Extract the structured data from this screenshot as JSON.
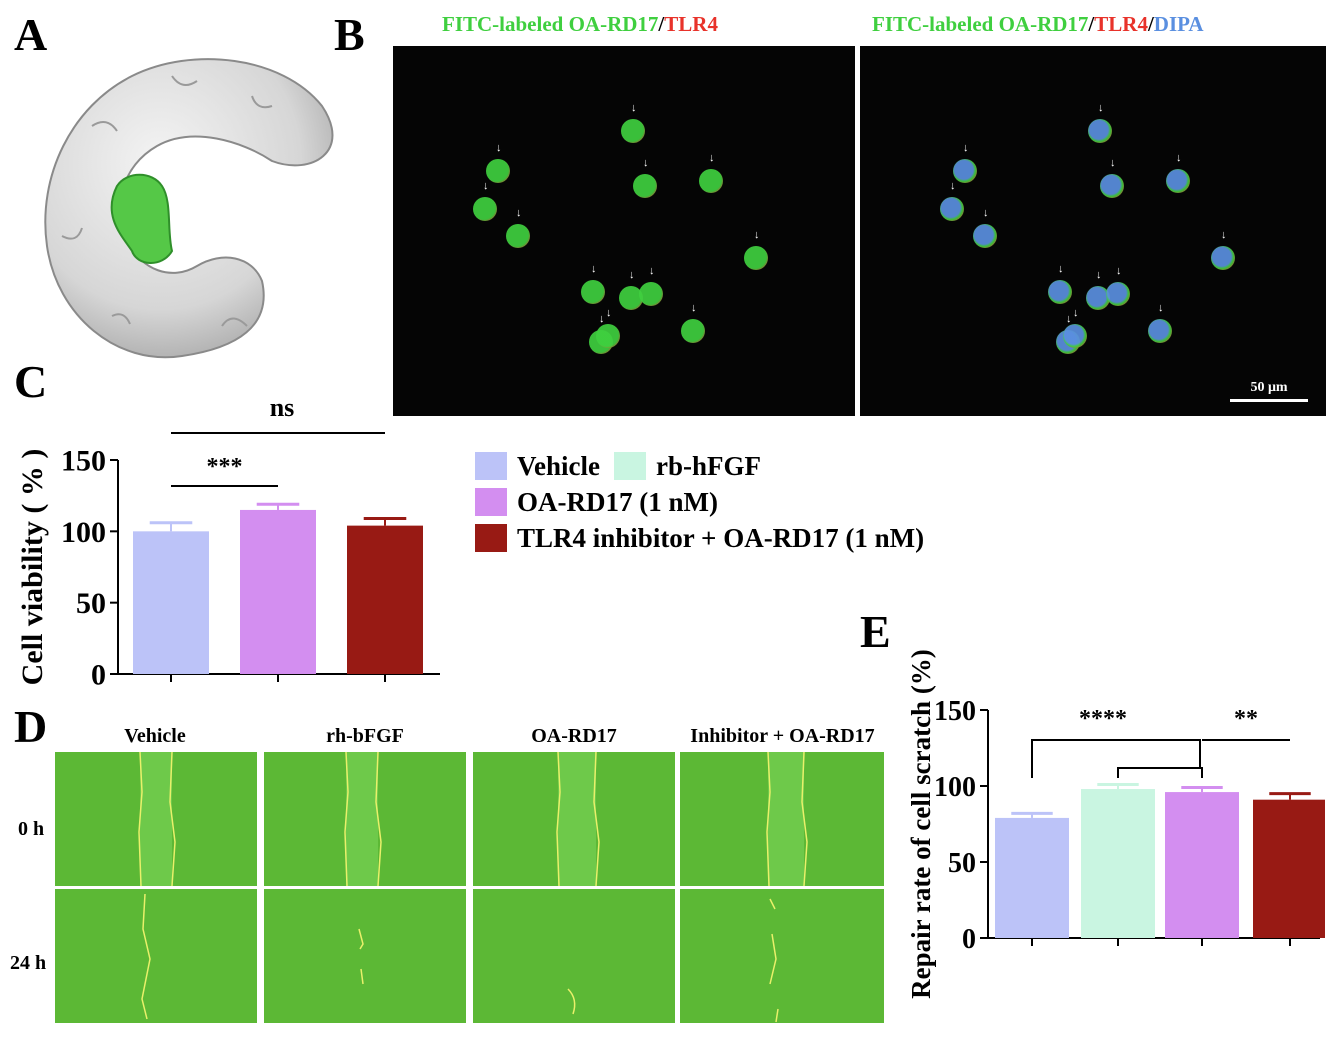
{
  "panels": {
    "a": "A",
    "b": "B",
    "c": "C",
    "d": "D",
    "e": "E"
  },
  "panel_b": {
    "left_title": {
      "part1": "FITC-labeled OA-RD17",
      "sep1": "/",
      "part2": "TLR4"
    },
    "right_title": {
      "part1": "FITC-labeled OA-RD17",
      "sep1": "/",
      "part2": "TLR4",
      "sep2": "/",
      "part3": "DIPA"
    },
    "scale_bar": "50 μm",
    "colors": {
      "green": "#3fcf3f",
      "red": "#e8322a",
      "blue": "#5a8fe0"
    }
  },
  "legend": {
    "items": [
      {
        "label": "Vehicle",
        "color": "#bcc3f8"
      },
      {
        "label": "rb-hFGF",
        "color": "#c9f5e1"
      },
      {
        "label": "OA-RD17 (1 nM)",
        "color": "#d38ef0"
      },
      {
        "label": "TLR4 inhibitor + OA-RD17 (1 nM)",
        "color": "#981a14"
      }
    ]
  },
  "panel_d": {
    "columns": [
      "Vehicle",
      "rh-bFGF",
      "OA-RD17",
      "Inhibitor + OA-RD17"
    ],
    "rows": [
      "0 h",
      "24 h"
    ]
  },
  "chart_data": [
    {
      "type": "bar",
      "panel": "C",
      "categories": [
        "Vehicle",
        "OA-RD17 (1 nM)",
        "TLR4 inhibitor + OA-RD17 (1 nM)"
      ],
      "values": [
        100,
        115,
        104
      ],
      "errors": [
        6,
        4,
        5
      ],
      "colors": [
        "#bcc3f8",
        "#d38ef0",
        "#981a14"
      ],
      "ylabel": "Cell viability ( % )",
      "ylim": [
        0,
        150
      ],
      "yticks": [
        0,
        50,
        100,
        150
      ],
      "significance": [
        {
          "from": 0,
          "to": 1,
          "label": "***"
        },
        {
          "from": 0,
          "to": 2,
          "label": "ns"
        }
      ]
    },
    {
      "type": "bar",
      "panel": "E",
      "categories": [
        "Vehicle",
        "rb-hFGF",
        "OA-RD17 (1 nM)",
        "TLR4 inhibitor + OA-RD17 (1 nM)"
      ],
      "values": [
        79,
        98,
        96,
        91
      ],
      "errors": [
        3,
        3,
        3,
        4
      ],
      "colors": [
        "#bcc3f8",
        "#c9f5e1",
        "#d38ef0",
        "#981a14"
      ],
      "ylabel": "Repair rate of cell scratch (%)",
      "ylim": [
        0,
        150
      ],
      "yticks": [
        0,
        50,
        100,
        150
      ],
      "significance": [
        {
          "from": 0,
          "to": "1-2",
          "label": "****"
        },
        {
          "from": 2,
          "to": 3,
          "label": "**"
        }
      ]
    }
  ]
}
